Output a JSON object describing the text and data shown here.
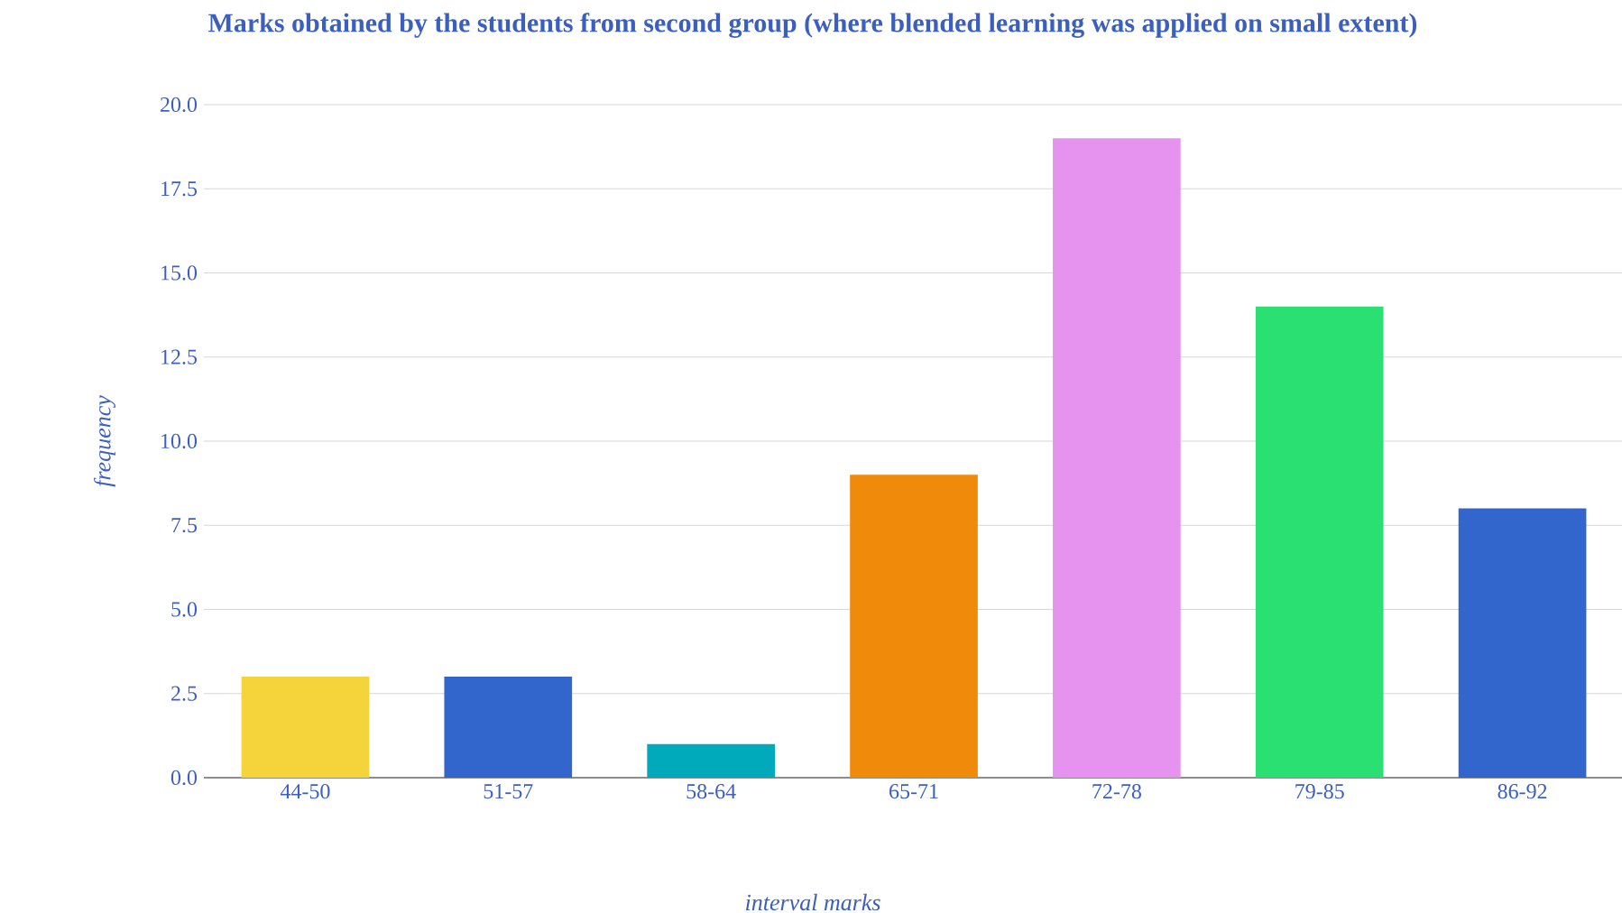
{
  "chart_data": {
    "type": "bar",
    "title": "Marks obtained by the students from second group (where blended learning was applied on small extent)",
    "xlabel": "interval marks",
    "ylabel": "frequency",
    "categories": [
      "44-50",
      "51-57",
      "58-64",
      "65-71",
      "72-78",
      "79-85",
      "86-92"
    ],
    "values": [
      3,
      3,
      1,
      9,
      19,
      14,
      8
    ],
    "colors": [
      "#f4d43a",
      "#3366cc",
      "#00aabb",
      "#f08a0b",
      "#e693f0",
      "#2ae072",
      "#3366cc"
    ],
    "ylim": [
      0,
      20
    ],
    "yticks": [
      {
        "value": 0,
        "label": "0.0"
      },
      {
        "value": 2.5,
        "label": "2.5"
      },
      {
        "value": 5,
        "label": "5.0"
      },
      {
        "value": 7.5,
        "label": "7.5"
      },
      {
        "value": 10,
        "label": "10.0"
      },
      {
        "value": 12.5,
        "label": "12.5"
      },
      {
        "value": 15,
        "label": "15.0"
      },
      {
        "value": 17.5,
        "label": "17.5"
      },
      {
        "value": 20,
        "label": "20.0"
      }
    ],
    "grid": "y"
  }
}
